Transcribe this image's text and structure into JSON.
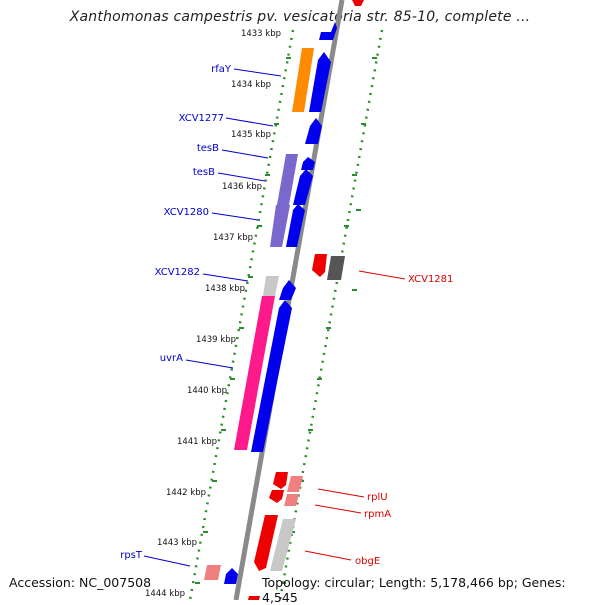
{
  "title": "Xanthomonas campestris pv. vesicatoria str. 85-10, complete ...",
  "footer": {
    "accession": "Accession: NC_007508",
    "topology": "Topology: circular; Length: 5,178,466 bp; Genes: 4,545"
  },
  "colors": {
    "backbone": "#8a8a8a",
    "ticks": "#2e8b2e",
    "forward_label": "#0000cc",
    "reverse_label": "#dd0000"
  },
  "ticks": [
    {
      "label": "1433 kbp"
    },
    {
      "label": "1434 kbp"
    },
    {
      "label": "1435 kbp"
    },
    {
      "label": "1436 kbp"
    },
    {
      "label": "1437 kbp"
    },
    {
      "label": "1438 kbp"
    },
    {
      "label": "1439 kbp"
    },
    {
      "label": "1440 kbp"
    },
    {
      "label": "1441 kbp"
    },
    {
      "label": "1442 kbp"
    },
    {
      "label": "1443 kbp"
    },
    {
      "label": "1444 kbp"
    }
  ],
  "gene_labels": {
    "forward": [
      "rfaY",
      "XCV1277",
      "tesB",
      "tesB",
      "XCV1280",
      "XCV1282",
      "uvrA",
      "rpsT"
    ],
    "reverse": [
      "XCV1281",
      "rplU",
      "rpmA",
      "obgE"
    ]
  }
}
